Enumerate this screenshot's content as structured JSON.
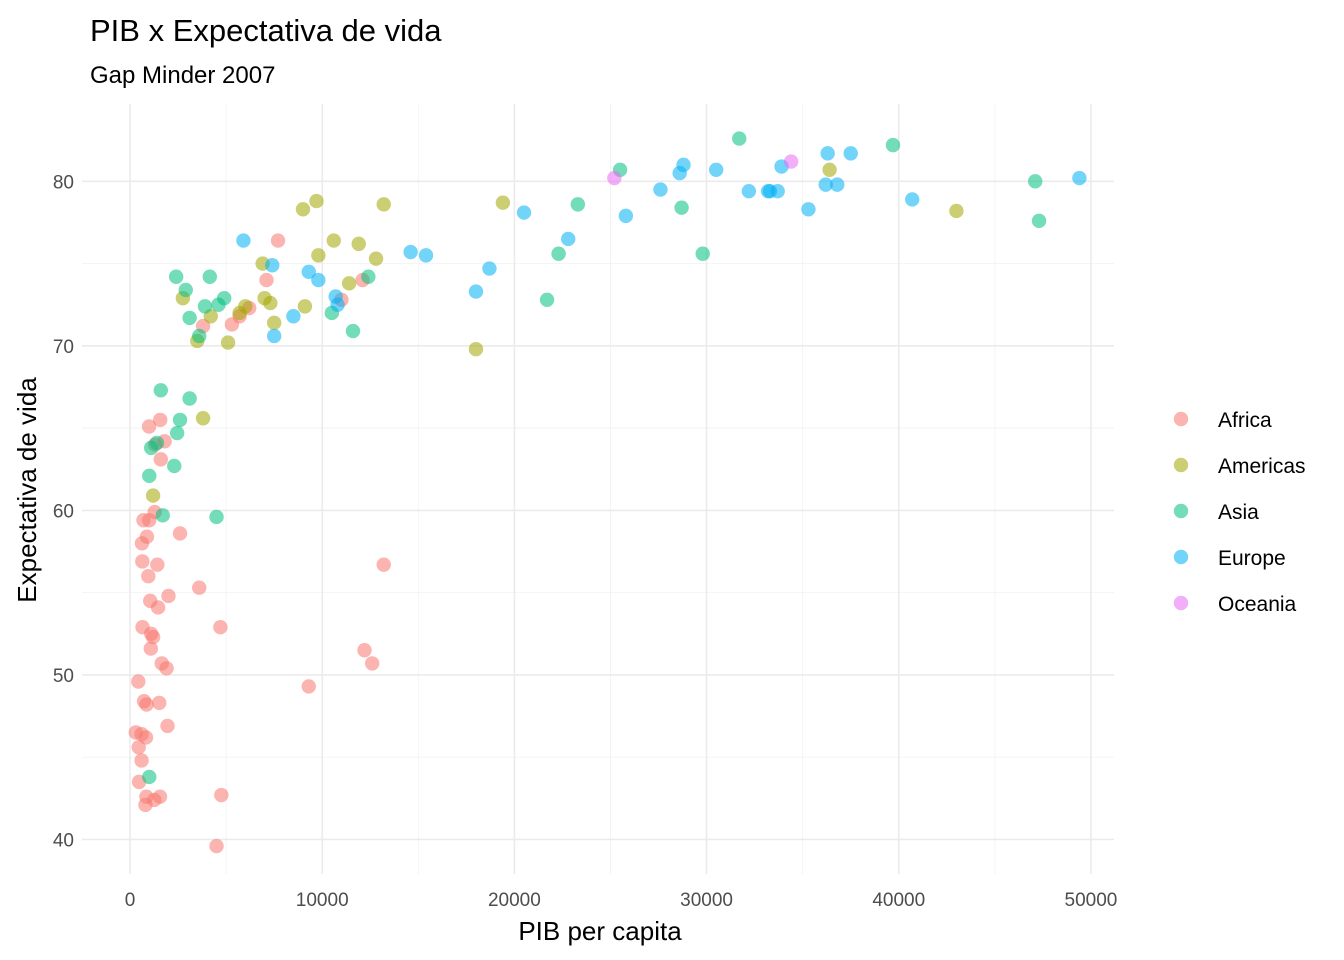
{
  "chart_data": {
    "type": "scatter",
    "title": "PIB x Expectativa de vida",
    "subtitle": "Gap Minder 2007",
    "xlabel": "PIB per capita",
    "ylabel": "Expectativa de vida",
    "xlim": [
      -2500,
      51200
    ],
    "ylim": [
      37.9,
      84.7
    ],
    "x_ticks": [
      0,
      10000,
      20000,
      30000,
      40000,
      50000
    ],
    "x_tick_labels": [
      "0",
      "10000",
      "20000",
      "30000",
      "40000",
      "50000"
    ],
    "y_ticks": [
      40,
      50,
      60,
      70,
      80
    ],
    "y_tick_labels": [
      "40",
      "50",
      "60",
      "70",
      "80"
    ],
    "grid": true,
    "legend_position": "right",
    "marker_opacity": 0.55,
    "series": [
      {
        "name": "Africa",
        "color": "#F8766D",
        "points": [
          [
            300,
            46.5
          ],
          [
            430,
            49.6
          ],
          [
            450,
            45.6
          ],
          [
            470,
            43.5
          ],
          [
            600,
            44.8
          ],
          [
            600,
            46.4
          ],
          [
            620,
            58.0
          ],
          [
            640,
            56.9
          ],
          [
            650,
            52.9
          ],
          [
            700,
            59.4
          ],
          [
            730,
            48.4
          ],
          [
            800,
            42.1
          ],
          [
            830,
            46.2
          ],
          [
            850,
            42.6
          ],
          [
            860,
            48.2
          ],
          [
            880,
            58.4
          ],
          [
            950,
            56.0
          ],
          [
            990,
            65.1
          ],
          [
            1000,
            59.4
          ],
          [
            1050,
            54.5
          ],
          [
            1080,
            51.6
          ],
          [
            1100,
            52.5
          ],
          [
            1200,
            52.3
          ],
          [
            1260,
            42.4
          ],
          [
            1280,
            59.9
          ],
          [
            1300,
            64.0
          ],
          [
            1420,
            56.7
          ],
          [
            1460,
            54.1
          ],
          [
            1520,
            48.3
          ],
          [
            1560,
            42.6
          ],
          [
            1570,
            65.5
          ],
          [
            1600,
            63.1
          ],
          [
            1650,
            50.7
          ],
          [
            1800,
            64.2
          ],
          [
            1900,
            50.4
          ],
          [
            1950,
            46.9
          ],
          [
            2000,
            54.8
          ],
          [
            2600,
            58.6
          ],
          [
            3600,
            55.3
          ],
          [
            3800,
            71.2
          ],
          [
            4500,
            39.6
          ],
          [
            4700,
            52.9
          ],
          [
            4750,
            42.7
          ],
          [
            5300,
            71.3
          ],
          [
            5700,
            71.8
          ],
          [
            6200,
            72.3
          ],
          [
            7100,
            74.0
          ],
          [
            7700,
            76.4
          ],
          [
            9300,
            49.3
          ],
          [
            11000,
            72.8
          ],
          [
            12100,
            74.0
          ],
          [
            12200,
            51.5
          ],
          [
            12600,
            50.7
          ],
          [
            13200,
            56.7
          ]
        ]
      },
      {
        "name": "Americas",
        "color": "#A3A500",
        "points": [
          [
            1200,
            60.9
          ],
          [
            2750,
            72.9
          ],
          [
            3500,
            70.3
          ],
          [
            3800,
            65.6
          ],
          [
            4200,
            71.8
          ],
          [
            5100,
            70.2
          ],
          [
            5700,
            72.0
          ],
          [
            6000,
            72.4
          ],
          [
            6900,
            75.0
          ],
          [
            7000,
            72.9
          ],
          [
            7300,
            72.6
          ],
          [
            7500,
            71.4
          ],
          [
            9000,
            78.3
          ],
          [
            9100,
            72.4
          ],
          [
            9700,
            78.8
          ],
          [
            9800,
            75.5
          ],
          [
            10600,
            76.4
          ],
          [
            11400,
            73.8
          ],
          [
            11900,
            76.2
          ],
          [
            12800,
            75.3
          ],
          [
            13200,
            78.6
          ],
          [
            18000,
            69.8
          ],
          [
            19400,
            78.7
          ],
          [
            36400,
            80.7
          ],
          [
            43000,
            78.2
          ]
        ]
      },
      {
        "name": "Asia",
        "color": "#00BF7D",
        "points": [
          [
            1000,
            43.8
          ],
          [
            1000,
            62.1
          ],
          [
            1100,
            63.8
          ],
          [
            1400,
            64.1
          ],
          [
            1600,
            67.3
          ],
          [
            1700,
            59.7
          ],
          [
            2300,
            62.7
          ],
          [
            2400,
            74.2
          ],
          [
            2450,
            64.7
          ],
          [
            2600,
            65.5
          ],
          [
            2900,
            73.4
          ],
          [
            3100,
            71.7
          ],
          [
            3100,
            66.8
          ],
          [
            3600,
            70.6
          ],
          [
            3900,
            72.4
          ],
          [
            4150,
            74.2
          ],
          [
            4500,
            59.6
          ],
          [
            4600,
            72.5
          ],
          [
            4900,
            72.9
          ],
          [
            10500,
            72.0
          ],
          [
            11600,
            70.9
          ],
          [
            12400,
            74.2
          ],
          [
            21700,
            72.8
          ],
          [
            22300,
            75.6
          ],
          [
            23300,
            78.6
          ],
          [
            25500,
            80.7
          ],
          [
            28700,
            78.4
          ],
          [
            29800,
            75.6
          ],
          [
            31700,
            82.6
          ],
          [
            39700,
            82.2
          ],
          [
            47100,
            80.0
          ],
          [
            47300,
            77.6
          ]
        ]
      },
      {
        "name": "Europe",
        "color": "#00B0F6",
        "points": [
          [
            5900,
            76.4
          ],
          [
            7400,
            74.9
          ],
          [
            7500,
            70.6
          ],
          [
            8500,
            71.8
          ],
          [
            9300,
            74.5
          ],
          [
            9800,
            74.0
          ],
          [
            10700,
            73.0
          ],
          [
            10800,
            72.5
          ],
          [
            14600,
            75.7
          ],
          [
            15400,
            75.5
          ],
          [
            18000,
            73.3
          ],
          [
            18700,
            74.7
          ],
          [
            20500,
            78.1
          ],
          [
            22800,
            76.5
          ],
          [
            25800,
            77.9
          ],
          [
            27600,
            79.5
          ],
          [
            28600,
            80.5
          ],
          [
            28800,
            81.0
          ],
          [
            30500,
            80.7
          ],
          [
            32200,
            79.4
          ],
          [
            33200,
            79.4
          ],
          [
            33300,
            79.4
          ],
          [
            33700,
            79.4
          ],
          [
            33900,
            80.9
          ],
          [
            35300,
            78.3
          ],
          [
            36200,
            79.8
          ],
          [
            36300,
            81.7
          ],
          [
            36800,
            79.8
          ],
          [
            37500,
            81.7
          ],
          [
            40700,
            78.9
          ],
          [
            49400,
            80.2
          ]
        ]
      },
      {
        "name": "Oceania",
        "color": "#E76BF3",
        "points": [
          [
            25200,
            80.2
          ],
          [
            34400,
            81.2
          ]
        ]
      }
    ]
  }
}
